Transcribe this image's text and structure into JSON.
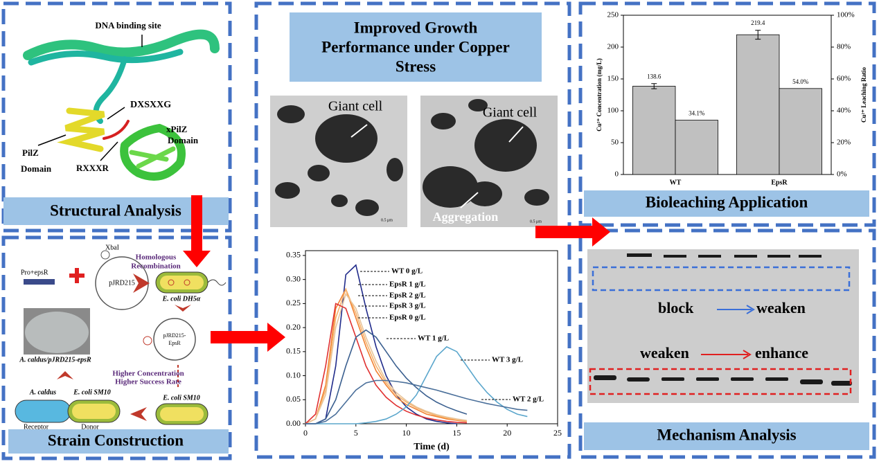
{
  "structural": {
    "title": "Structural Analysis",
    "dna_site": "DNA binding site",
    "motif1": "DXSXXG",
    "xpilz": [
      "xPilZ",
      "Domain"
    ],
    "pilz": [
      "PilZ",
      "Domain"
    ],
    "motif2": "RXXXR"
  },
  "strain": {
    "title": "Strain Construction",
    "xbai": "XbaI",
    "homologous": [
      "Homologous",
      "Recombination"
    ],
    "insert": "Pro+epsR",
    "vector": "pJRD215",
    "dh5a": "E. coli DH5α",
    "construct": [
      "pJRD215-",
      "EpsR"
    ],
    "higher": [
      "Higher Concentration",
      "Higher Success Rate"
    ],
    "result": "A. caldus/pJRD215-epsR",
    "receptor_strain": "A. caldus",
    "donor_strain": "E. coli SM10",
    "sm10": "E. coli SM10",
    "receptor": "Receptor",
    "donor": "Donor"
  },
  "growth": {
    "title": [
      "Improved Growth",
      "Performance under Copper",
      "Stress"
    ],
    "micrographs": [
      {
        "label": "Giant cell",
        "scale": "0.5 μm"
      },
      {
        "label": "Giant cell",
        "extra": "Aggregation",
        "scale": "0.5 μm"
      }
    ]
  },
  "chart_data": [
    {
      "type": "line",
      "x_label": "Time (d)",
      "x": [
        0,
        1,
        2,
        3,
        4,
        5,
        6,
        7,
        8,
        9,
        10,
        11,
        12,
        13,
        14,
        15,
        16,
        17,
        18,
        19,
        20,
        21,
        22
      ],
      "xlim": [
        0,
        25
      ],
      "xticks": [
        0,
        5,
        10,
        15,
        20,
        25
      ],
      "ylim": [
        0,
        0.36
      ],
      "yticks": [
        {
          "value": 0,
          "label": "0.00"
        },
        {
          "value": 0.05,
          "label": "0.05"
        },
        {
          "value": 0.1,
          "label": "0.10"
        },
        {
          "value": 0.15,
          "label": "0.15"
        },
        {
          "value": 0.2,
          "label": "0.20"
        },
        {
          "value": 0.25,
          "label": "0.25"
        },
        {
          "value": 0.3,
          "label": "0.30"
        },
        {
          "value": 0.35,
          "label": "0.35"
        }
      ],
      "series": [
        {
          "name": "WT 0 g/L",
          "color": "#1f2a8a",
          "values": [
            0,
            0,
            0.01,
            0.12,
            0.31,
            0.33,
            0.24,
            0.16,
            0.1,
            0.06,
            0.035,
            0.02,
            0.01,
            0.005,
            0.002,
            0,
            null,
            null,
            null,
            null,
            null,
            null,
            null
          ]
        },
        {
          "name": "EpsR 1 g/L",
          "color": "#f08030",
          "values": [
            0,
            0.01,
            0.08,
            0.24,
            0.28,
            0.22,
            0.16,
            0.11,
            0.08,
            0.055,
            0.04,
            0.03,
            0.02,
            0.015,
            0.01,
            0.007,
            0.005,
            null,
            null,
            null,
            null,
            null,
            null
          ]
        },
        {
          "name": "EpsR 2 g/L",
          "color": "#f7b26a",
          "values": [
            0,
            0.01,
            0.07,
            0.22,
            0.28,
            0.23,
            0.17,
            0.12,
            0.085,
            0.06,
            0.045,
            0.033,
            0.024,
            0.017,
            0.012,
            0.008,
            0.006,
            null,
            null,
            null,
            null,
            null,
            null
          ]
        },
        {
          "name": "EpsR 3 g/L",
          "color": "#e8c49a",
          "values": [
            0,
            0.01,
            0.06,
            0.2,
            0.27,
            0.24,
            0.18,
            0.13,
            0.09,
            0.065,
            0.048,
            0.035,
            0.026,
            0.019,
            0.014,
            0.01,
            0.007,
            null,
            null,
            null,
            null,
            null,
            null
          ]
        },
        {
          "name": "EpsR 0 g/L",
          "color": "#e03030",
          "values": [
            0,
            0.02,
            0.12,
            0.25,
            0.24,
            0.18,
            0.12,
            0.08,
            0.055,
            0.038,
            0.026,
            0.018,
            0.012,
            0.008,
            0.005,
            0.003,
            0.002,
            null,
            null,
            null,
            null,
            null,
            null
          ]
        },
        {
          "name": "WT 1 g/L",
          "color": "#3a5f8f",
          "values": [
            0,
            0,
            0.01,
            0.05,
            0.12,
            0.18,
            0.195,
            0.18,
            0.15,
            0.12,
            0.095,
            0.075,
            0.058,
            0.045,
            0.035,
            0.027,
            0.02,
            null,
            null,
            null,
            null,
            null,
            null
          ]
        },
        {
          "name": "WT 3 g/L",
          "color": "#5aa6cc",
          "values": [
            0,
            0,
            0,
            0,
            0,
            0,
            0.002,
            0.005,
            0.01,
            0.02,
            0.035,
            0.06,
            0.1,
            0.14,
            0.16,
            0.15,
            0.12,
            0.09,
            0.065,
            0.045,
            0.03,
            0.02,
            0.015
          ]
        },
        {
          "name": "WT 2 g/L",
          "color": "#4a6f9a",
          "values": [
            0,
            0,
            0.005,
            0.02,
            0.045,
            0.07,
            0.085,
            0.09,
            0.09,
            0.088,
            0.085,
            0.08,
            0.075,
            0.07,
            0.064,
            0.058,
            0.052,
            0.047,
            0.042,
            0.038,
            0.034,
            0.03,
            0.028
          ]
        }
      ]
    },
    {
      "type": "bar",
      "y_label": "Cu²⁺ Concentration (mg/L)",
      "y2_label": "Cu²⁺ Leaching Ratio",
      "categories": [
        "WT",
        "EpsR"
      ],
      "ylim": [
        0,
        250
      ],
      "yticks": [
        0,
        50,
        100,
        150,
        200,
        250
      ],
      "y2lim": [
        0,
        100
      ],
      "y2ticks": [
        {
          "value": 0,
          "label": "0%"
        },
        {
          "value": 20,
          "label": "20%"
        },
        {
          "value": 40,
          "label": "40%"
        },
        {
          "value": 60,
          "label": "60%"
        },
        {
          "value": 80,
          "label": "80%"
        },
        {
          "value": 100,
          "label": "100%"
        }
      ],
      "series": [
        {
          "color": "#c0c0c0",
          "values": [
            138.6,
            219.4
          ],
          "errors": [
            4,
            7
          ]
        },
        {
          "color": "#c0c0c0",
          "axis": "y2",
          "values": [
            34.1,
            54.0
          ],
          "value_labels": [
            "34.1%",
            "54.0%"
          ]
        }
      ]
    }
  ],
  "bioleaching": {
    "title": "Bioleaching Application"
  },
  "mechanism": {
    "title": "Mechanism Analysis",
    "top": [
      "block",
      "weaken"
    ],
    "bottom": [
      "weaken",
      "enhance"
    ]
  }
}
